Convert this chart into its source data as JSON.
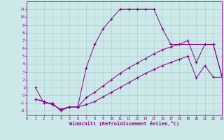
{
  "xlabel": "Windchill (Refroidissement éolien,°C)",
  "xlim": [
    0,
    23
  ],
  "ylim": [
    -2.5,
    12
  ],
  "yticks": [
    -2,
    -1,
    0,
    1,
    2,
    3,
    4,
    5,
    6,
    7,
    8,
    9,
    10,
    11
  ],
  "xticks": [
    0,
    1,
    2,
    3,
    4,
    5,
    6,
    7,
    8,
    9,
    10,
    11,
    12,
    13,
    14,
    15,
    16,
    17,
    18,
    19,
    20,
    21,
    22,
    23
  ],
  "bg_color": "#cce8e8",
  "line_color": "#880088",
  "line1_x": [
    1,
    2,
    3,
    4,
    5,
    6,
    7,
    8,
    9,
    10,
    11,
    12,
    13,
    14,
    15,
    16,
    17,
    21,
    22,
    23
  ],
  "line1_y": [
    1,
    -1,
    -1,
    -2,
    -1.5,
    -1.5,
    3.5,
    6.5,
    8.5,
    9.8,
    11,
    11,
    11,
    11,
    11,
    8.5,
    6.5,
    6.5,
    6.5,
    2.5
  ],
  "line2_x": [
    1,
    2,
    3,
    4,
    5,
    6,
    7,
    8,
    9,
    10,
    11,
    12,
    13,
    14,
    15,
    16,
    17,
    18,
    19,
    20,
    21,
    22,
    23
  ],
  "line2_y": [
    -0.5,
    -0.8,
    -1.2,
    -1.8,
    -1.5,
    -1.5,
    -0.3,
    0.4,
    1.2,
    2.0,
    2.8,
    3.5,
    4.1,
    4.7,
    5.3,
    5.8,
    6.2,
    6.5,
    7.0,
    4.2,
    6.5,
    6.5,
    2.5
  ],
  "line3_x": [
    1,
    2,
    3,
    4,
    5,
    6,
    7,
    8,
    9,
    10,
    11,
    12,
    13,
    14,
    15,
    16,
    17,
    18,
    19,
    20,
    21,
    22,
    23
  ],
  "line3_y": [
    -0.5,
    -0.8,
    -1.2,
    -1.8,
    -1.5,
    -1.5,
    -1.2,
    -0.8,
    -0.2,
    0.4,
    1.0,
    1.6,
    2.2,
    2.8,
    3.3,
    3.8,
    4.2,
    4.6,
    5.0,
    2.2,
    3.8,
    2.3,
    2.3
  ]
}
